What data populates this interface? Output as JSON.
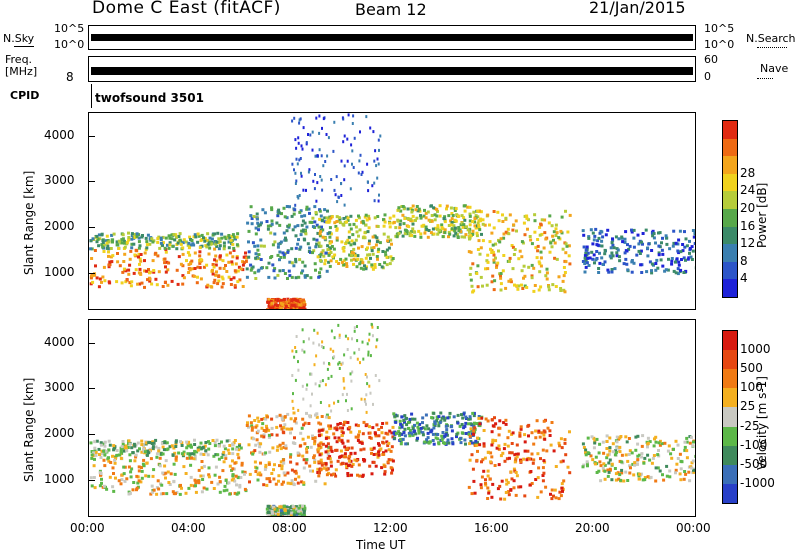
{
  "header": {
    "station": "Dome C East (fitACF)",
    "beam": "Beam 12",
    "date": "21/Jan/2015"
  },
  "strips": {
    "nsky": {
      "label": "N.Sky",
      "top_tick": "10^5",
      "bottom_tick": "10^0"
    },
    "nsearch": {
      "label": "N.Search",
      "top_tick": "10^5",
      "bottom_tick": "10^0"
    },
    "freq": {
      "label_line1": "Freq.",
      "label_line2": "[MHz]",
      "tick": "8"
    },
    "nave": {
      "label": "Nave",
      "top_tick": "60",
      "bottom_tick": "0"
    },
    "cpid": {
      "label": "CPID",
      "value": "twofsound 3501"
    }
  },
  "chart_data": [
    {
      "type": "heatmap",
      "panel": "power",
      "ylabel": "Slant Range [km]",
      "xlabel": "Time UT",
      "x_ticks": [
        "00:00",
        "04:00",
        "08:00",
        "12:00",
        "16:00",
        "20:00",
        "00:00"
      ],
      "y_ticks": [
        "1000",
        "2000",
        "3000",
        "4000"
      ],
      "ylim": [
        200,
        4500
      ],
      "xlim_hours": [
        0,
        24
      ],
      "colorbar": {
        "label": "Power [dB]",
        "ticks": [
          "4",
          "8",
          "12",
          "16",
          "20",
          "24",
          "28"
        ],
        "colors": [
          "#1e22d8",
          "#2c55c8",
          "#3a7fb0",
          "#3b8a68",
          "#57a84a",
          "#b6cc3a",
          "#f0d21e",
          "#f3a51c",
          "#ee6a14",
          "#e02a12"
        ]
      }
    },
    {
      "type": "heatmap",
      "panel": "velocity",
      "ylabel": "Slant Range [km]",
      "xlabel": "Time UT",
      "x_ticks": [
        "00:00",
        "04:00",
        "08:00",
        "12:00",
        "16:00",
        "20:00",
        "00:00"
      ],
      "y_ticks": [
        "1000",
        "2000",
        "3000",
        "4000"
      ],
      "ylim": [
        200,
        4500
      ],
      "xlim_hours": [
        0,
        24
      ],
      "colorbar": {
        "label": "Velocity [m s-1]",
        "ticks": [
          "1000",
          "500",
          "100",
          "25",
          "-25",
          "-100",
          "-500",
          "-1000"
        ],
        "colors": [
          "#2840c8",
          "#3a6fb8",
          "#3f8a5c",
          "#5cb848",
          "#c9c9c2",
          "#f4b020",
          "#f07a14",
          "#e64812",
          "#d81a10"
        ]
      }
    }
  ],
  "axis": {
    "xlabel": "Time UT"
  }
}
